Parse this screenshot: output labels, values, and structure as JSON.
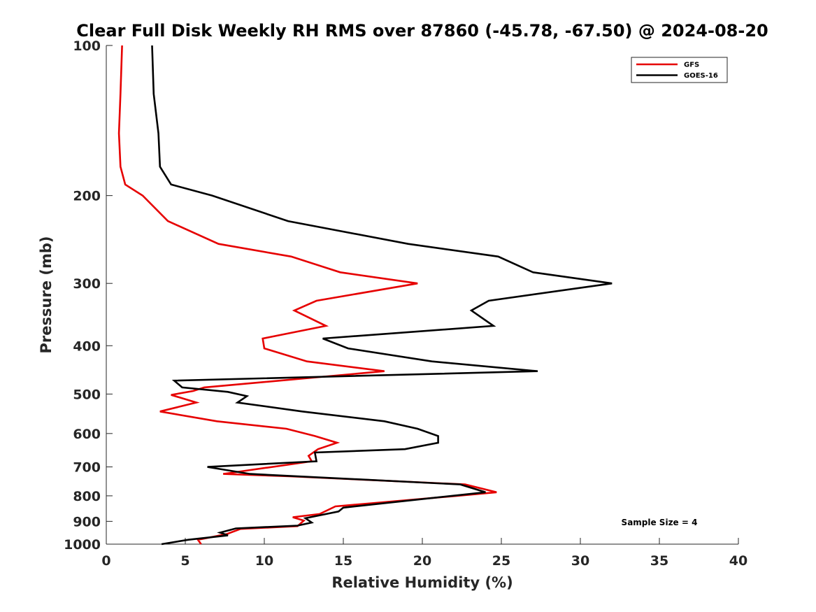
{
  "chart_data": {
    "type": "line",
    "title": "Clear Full Disk Weekly RH RMS over 87860 (-45.78, -67.50) @ 2024-08-20",
    "xlabel": "Relative Humidity (%)",
    "ylabel": "Pressure (mb)",
    "xlim": [
      0,
      40
    ],
    "ylim": [
      100,
      1000
    ],
    "yscale": "log",
    "yreversed": true,
    "xticks": [
      0,
      5,
      10,
      15,
      20,
      25,
      30,
      35,
      40
    ],
    "yticks": [
      100,
      200,
      300,
      400,
      500,
      600,
      700,
      800,
      900,
      1000
    ],
    "grid": false,
    "legend_position": "top-right",
    "annotation": "Sample Size = 4",
    "series": [
      {
        "name": "GFS",
        "color": "#e60000",
        "points": [
          [
            1.0,
            100
          ],
          [
            0.9,
            125
          ],
          [
            0.8,
            150
          ],
          [
            0.9,
            175
          ],
          [
            1.2,
            190
          ],
          [
            2.3,
            200
          ],
          [
            3.9,
            225
          ],
          [
            7.1,
            250
          ],
          [
            11.7,
            265
          ],
          [
            14.8,
            285
          ],
          [
            19.7,
            300
          ],
          [
            13.3,
            325
          ],
          [
            11.9,
            340
          ],
          [
            13.9,
            365
          ],
          [
            9.9,
            387
          ],
          [
            10.0,
            405
          ],
          [
            12.7,
            430
          ],
          [
            17.6,
            450
          ],
          [
            6.2,
            485
          ],
          [
            5.5,
            493
          ],
          [
            4.1,
            502
          ],
          [
            5.7,
            520
          ],
          [
            3.4,
            542
          ],
          [
            7.0,
            567
          ],
          [
            11.4,
            587
          ],
          [
            13.2,
            607
          ],
          [
            14.6,
            626
          ],
          [
            13.4,
            645
          ],
          [
            12.8,
            665
          ],
          [
            13.0,
            682
          ],
          [
            7.4,
            723
          ],
          [
            11.6,
            731
          ],
          [
            22.7,
            759
          ],
          [
            24.7,
            787
          ],
          [
            22.2,
            800
          ],
          [
            14.5,
            840
          ],
          [
            13.5,
            870
          ],
          [
            11.8,
            883
          ],
          [
            12.5,
            897
          ],
          [
            12.1,
            920
          ],
          [
            8.5,
            932
          ],
          [
            7.6,
            955
          ],
          [
            5.8,
            980
          ],
          [
            6.0,
            1000
          ]
        ]
      },
      {
        "name": "GOES-16",
        "color": "#000000",
        "points": [
          [
            2.9,
            100
          ],
          [
            3.0,
            125
          ],
          [
            3.3,
            150
          ],
          [
            3.4,
            175
          ],
          [
            4.1,
            190
          ],
          [
            6.7,
            200
          ],
          [
            11.5,
            225
          ],
          [
            19.1,
            250
          ],
          [
            24.8,
            265
          ],
          [
            27.0,
            285
          ],
          [
            32.0,
            300
          ],
          [
            24.2,
            325
          ],
          [
            23.1,
            340
          ],
          [
            24.5,
            365
          ],
          [
            13.7,
            387
          ],
          [
            15.3,
            405
          ],
          [
            20.6,
            430
          ],
          [
            27.3,
            450
          ],
          [
            4.3,
            470
          ],
          [
            4.8,
            485
          ],
          [
            7.7,
            495
          ],
          [
            8.9,
            505
          ],
          [
            8.3,
            520
          ],
          [
            12.4,
            542
          ],
          [
            17.6,
            567
          ],
          [
            19.7,
            587
          ],
          [
            21.0,
            607
          ],
          [
            21.0,
            626
          ],
          [
            18.9,
            645
          ],
          [
            13.2,
            655
          ],
          [
            13.3,
            682
          ],
          [
            6.4,
            700
          ],
          [
            9.1,
            723
          ],
          [
            22.4,
            759
          ],
          [
            24.0,
            787
          ],
          [
            15.0,
            845
          ],
          [
            14.7,
            860
          ],
          [
            12.6,
            887
          ],
          [
            13.0,
            905
          ],
          [
            12.1,
            918
          ],
          [
            8.2,
            930
          ],
          [
            7.2,
            948
          ],
          [
            7.7,
            960
          ],
          [
            5.2,
            980
          ],
          [
            3.5,
            1000
          ]
        ]
      }
    ]
  }
}
